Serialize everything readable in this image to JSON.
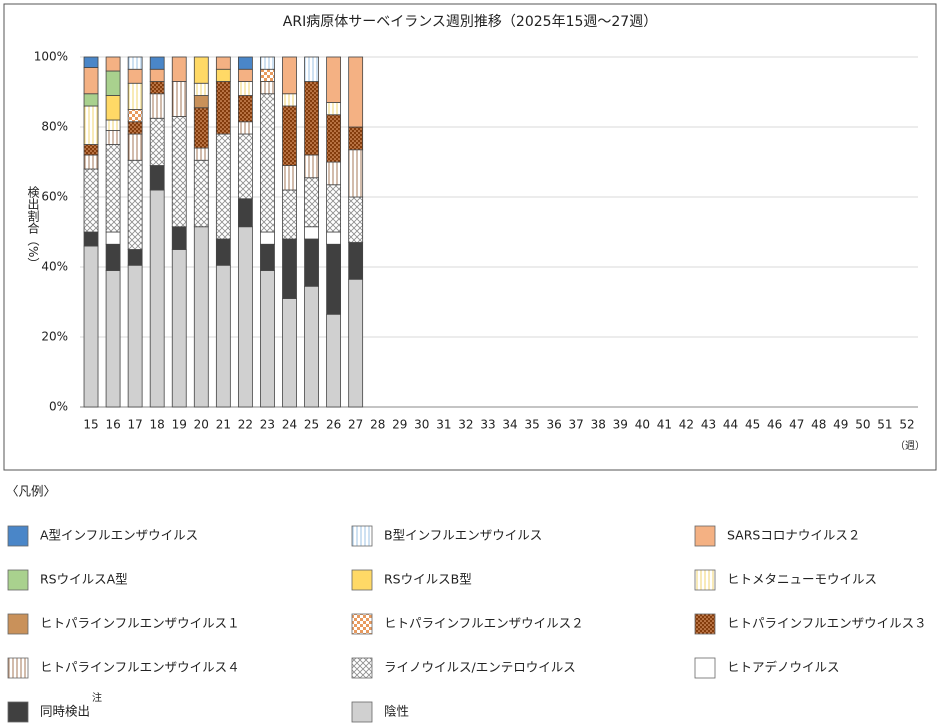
{
  "chart_data": {
    "type": "stacked_bar",
    "title": "ARI病原体サーベイランス週別推移（2025年15週～27週）",
    "y_label": "検出割合（%）",
    "x_unit": "（週）",
    "legend_title": "〈凡例〉",
    "legend_note": "注",
    "categories": [
      "15",
      "16",
      "17",
      "18",
      "19",
      "20",
      "21",
      "22",
      "23",
      "24",
      "25",
      "26",
      "27",
      "28",
      "29",
      "30",
      "31",
      "32",
      "33",
      "34",
      "35",
      "36",
      "37",
      "38",
      "39",
      "40",
      "41",
      "42",
      "43",
      "44",
      "45",
      "46",
      "47",
      "48",
      "49",
      "50",
      "51",
      "52"
    ],
    "ylim": [
      0,
      100
    ],
    "yticks": [
      {
        "value": 0,
        "label": "0%"
      },
      {
        "value": 20,
        "label": "20%"
      },
      {
        "value": 40,
        "label": "40%"
      },
      {
        "value": 60,
        "label": "60%"
      },
      {
        "value": 80,
        "label": "80%"
      },
      {
        "value": 100,
        "label": "100%"
      }
    ],
    "grid": true,
    "series": [
      {
        "name": "A型インフルエンザウイルス",
        "color": "#4a86c8",
        "pattern": "solid",
        "values": [
          3,
          0,
          0,
          3.5,
          0,
          0,
          0,
          3.5,
          0,
          0,
          0,
          0,
          0,
          null,
          null,
          null,
          null,
          null,
          null,
          null,
          null,
          null,
          null,
          null,
          null,
          null,
          null,
          null,
          null,
          null,
          null,
          null,
          null,
          null,
          null,
          null,
          null,
          null
        ]
      },
      {
        "name": "B型インフルエンザウイルス",
        "color": "#9dc3e6",
        "pattern": "vlines",
        "values": [
          0,
          0,
          3.5,
          0,
          0,
          0,
          0,
          0,
          3.5,
          0,
          7,
          0,
          0,
          null,
          null,
          null,
          null,
          null,
          null,
          null,
          null,
          null,
          null,
          null,
          null,
          null,
          null,
          null,
          null,
          null,
          null,
          null,
          null,
          null,
          null,
          null,
          null,
          null
        ]
      },
      {
        "name": "SARSコロナウイルス２",
        "color": "#f4b183",
        "pattern": "solid",
        "values": [
          7.5,
          4,
          4,
          3.5,
          7,
          0,
          3.5,
          3.5,
          0,
          10.5,
          0,
          13,
          20,
          null,
          null,
          null,
          null,
          null,
          null,
          null,
          null,
          null,
          null,
          null,
          null,
          null,
          null,
          null,
          null,
          null,
          null,
          null,
          null,
          null,
          null,
          null,
          null,
          null
        ]
      },
      {
        "name": "RSウイルスA型",
        "color": "#a9d18e",
        "pattern": "solid",
        "values": [
          3.5,
          7,
          0,
          0,
          0,
          0,
          0,
          0,
          0,
          0,
          0,
          0,
          0,
          null,
          null,
          null,
          null,
          null,
          null,
          null,
          null,
          null,
          null,
          null,
          null,
          null,
          null,
          null,
          null,
          null,
          null,
          null,
          null,
          null,
          null,
          null,
          null,
          null
        ]
      },
      {
        "name": "RSウイルスB型",
        "color": "#ffd966",
        "pattern": "solid",
        "values": [
          0,
          7,
          0,
          0,
          0,
          7.5,
          3.5,
          0,
          0,
          0,
          0,
          0,
          0,
          null,
          null,
          null,
          null,
          null,
          null,
          null,
          null,
          null,
          null,
          null,
          null,
          null,
          null,
          null,
          null,
          null,
          null,
          null,
          null,
          null,
          null,
          null,
          null,
          null
        ]
      },
      {
        "name": "ヒトメタニューモウイルス",
        "color": "#f2d472",
        "pattern": "vlines",
        "values": [
          11,
          3,
          7.5,
          0,
          0,
          3.5,
          0,
          4,
          0,
          3.5,
          0,
          3.5,
          0,
          null,
          null,
          null,
          null,
          null,
          null,
          null,
          null,
          null,
          null,
          null,
          null,
          null,
          null,
          null,
          null,
          null,
          null,
          null,
          null,
          null,
          null,
          null,
          null,
          null
        ]
      },
      {
        "name": "ヒトパラインフルエンザウイルス１",
        "color": "#c9915a",
        "pattern": "solid",
        "values": [
          0,
          0,
          0,
          0,
          0,
          3.5,
          0,
          0,
          0,
          0,
          0,
          0,
          0,
          null,
          null,
          null,
          null,
          null,
          null,
          null,
          null,
          null,
          null,
          null,
          null,
          null,
          null,
          null,
          null,
          null,
          null,
          null,
          null,
          null,
          null,
          null,
          null,
          null
        ]
      },
      {
        "name": "ヒトパラインフルエンザウイルス２",
        "color": "#e89a5e",
        "pattern": "checker",
        "values": [
          0,
          0,
          3.5,
          0,
          0,
          0,
          0,
          0,
          3.5,
          0,
          0,
          0,
          0,
          null,
          null,
          null,
          null,
          null,
          null,
          null,
          null,
          null,
          null,
          null,
          null,
          null,
          null,
          null,
          null,
          null,
          null,
          null,
          null,
          null,
          null,
          null,
          null,
          null
        ]
      },
      {
        "name": "ヒトパラインフルエンザウイルス３",
        "color": "#843c0c",
        "pattern": "dots",
        "values": [
          3,
          0,
          3.5,
          3.5,
          0,
          11.5,
          15,
          7.5,
          0,
          17,
          21,
          13.5,
          6.5,
          null,
          null,
          null,
          null,
          null,
          null,
          null,
          null,
          null,
          null,
          null,
          null,
          null,
          null,
          null,
          null,
          null,
          null,
          null,
          null,
          null,
          null,
          null,
          null,
          null
        ]
      },
      {
        "name": "ヒトパラインフルエンザウイルス４",
        "color": "#a5785a",
        "pattern": "vlines",
        "values": [
          4,
          4,
          7.5,
          7,
          10,
          3.5,
          0,
          3.5,
          3.5,
          7,
          6.5,
          6.5,
          13.5,
          null,
          null,
          null,
          null,
          null,
          null,
          null,
          null,
          null,
          null,
          null,
          null,
          null,
          null,
          null,
          null,
          null,
          null,
          null,
          null,
          null,
          null,
          null,
          null,
          null
        ]
      },
      {
        "name": "ライノウイルス/エンテロウイルス",
        "color": "#8c8c8c",
        "pattern": "cross",
        "values": [
          18,
          25,
          25.5,
          13.5,
          31.5,
          19,
          30,
          18.5,
          39.5,
          14,
          14,
          13.5,
          13,
          null,
          null,
          null,
          null,
          null,
          null,
          null,
          null,
          null,
          null,
          null,
          null,
          null,
          null,
          null,
          null,
          null,
          null,
          null,
          null,
          null,
          null,
          null,
          null,
          null
        ]
      },
      {
        "name": "ヒトアデノウイルス",
        "color": "#ffffff",
        "pattern": "solid",
        "values": [
          0,
          3.5,
          0,
          0,
          0,
          0,
          0,
          0,
          3.5,
          0,
          3.5,
          3.5,
          0,
          null,
          null,
          null,
          null,
          null,
          null,
          null,
          null,
          null,
          null,
          null,
          null,
          null,
          null,
          null,
          null,
          null,
          null,
          null,
          null,
          null,
          null,
          null,
          null,
          null
        ]
      },
      {
        "name": "同時検出",
        "color": "#404040",
        "pattern": "solid",
        "values": [
          4,
          7.5,
          4.5,
          7,
          6.5,
          0,
          7.5,
          8,
          7.5,
          17,
          13.5,
          20,
          10.5,
          null,
          null,
          null,
          null,
          null,
          null,
          null,
          null,
          null,
          null,
          null,
          null,
          null,
          null,
          null,
          null,
          null,
          null,
          null,
          null,
          null,
          null,
          null,
          null,
          null
        ]
      },
      {
        "name": "陰性",
        "color": "#d0d0d0",
        "pattern": "solid",
        "values": [
          46,
          39,
          40.5,
          62,
          45,
          51.5,
          40.5,
          51.5,
          39,
          31,
          34.5,
          26.5,
          36.5,
          null,
          null,
          null,
          null,
          null,
          null,
          null,
          null,
          null,
          null,
          null,
          null,
          null,
          null,
          null,
          null,
          null,
          null,
          null,
          null,
          null,
          null,
          null,
          null,
          null
        ]
      }
    ]
  }
}
